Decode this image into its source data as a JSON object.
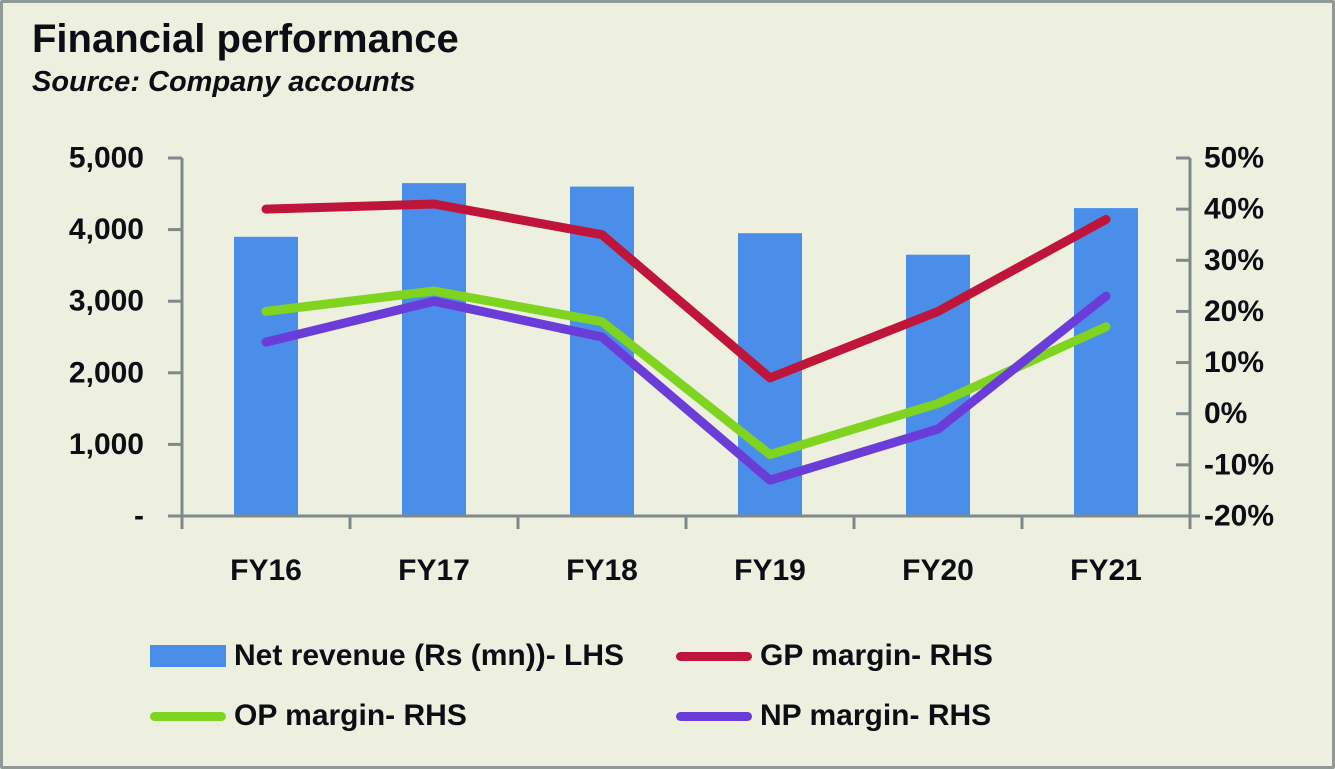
{
  "header": {
    "title": "Financial performance",
    "source": "Source: Company accounts"
  },
  "colors": {
    "background": "#eef0df",
    "frame_border": "#8f9a96",
    "axis": "#7d8a88",
    "text": "#0b0e14",
    "bar": "#4a8eea",
    "gp": "#c0153a",
    "op": "#7fd41f",
    "np": "#6a3cd8"
  },
  "chart_data": {
    "type": "combo-bar-line",
    "title": "Financial performance",
    "subtitle": "Source: Company accounts",
    "categories": [
      "FY16",
      "FY17",
      "FY18",
      "FY19",
      "FY20",
      "FY21"
    ],
    "bar_series": {
      "key": "net-revenue",
      "name": "Net revenue  (Rs  (mn))- LHS",
      "axis": "left",
      "color_key": "bar",
      "values": [
        3900,
        4650,
        4600,
        3950,
        3650,
        4300
      ]
    },
    "line_series": [
      {
        "key": "gp-margin",
        "name": "GP margin- RHS",
        "axis": "right",
        "color_key": "gp",
        "values": [
          40,
          41,
          35,
          7,
          20,
          38
        ]
      },
      {
        "key": "op-margin",
        "name": "OP margin- RHS",
        "axis": "right",
        "color_key": "op",
        "values": [
          20,
          24,
          18,
          -8,
          2,
          17
        ]
      },
      {
        "key": "np-margin",
        "name": "NP margin- RHS",
        "axis": "right",
        "color_key": "np",
        "values": [
          14,
          22,
          15,
          -13,
          -3,
          23
        ]
      }
    ],
    "left_axis": {
      "ticks": [
        "5,000",
        "4,000",
        "3,000",
        "2,000",
        "1,000",
        "-"
      ],
      "min": 0,
      "max": 5000
    },
    "right_axis": {
      "ticks": [
        "50%",
        "40%",
        "30%",
        "20%",
        "10%",
        "0%",
        "-10%",
        "-20%"
      ],
      "min": -20,
      "max": 50
    },
    "grid": false,
    "legend_position": "bottom"
  }
}
